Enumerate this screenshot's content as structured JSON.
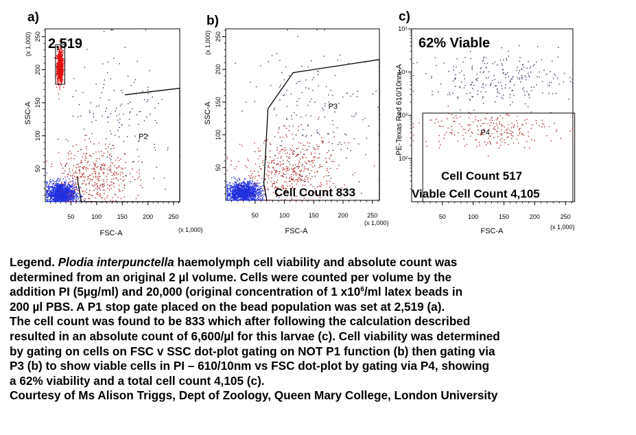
{
  "chart_data": [
    {
      "type": "scatter",
      "panel_label": "a)",
      "count_text": "2,519",
      "xlabel": "FSC-A",
      "ylabel": "SSC-A",
      "x_scale_note": "(x 1,000)",
      "y_scale_note": "(x 1,000)",
      "xlim": [
        0,
        262
      ],
      "ylim": [
        0,
        262
      ],
      "x_ticks": [
        "50",
        "100",
        "150",
        "200",
        "250"
      ],
      "y_ticks": [
        "50",
        "100",
        "150",
        "200",
        "250"
      ],
      "gates": [
        {
          "name": "P1",
          "shape": "rectangle",
          "x_range": [
            20,
            38
          ],
          "y_range": [
            178,
            238
          ],
          "label_shown": false
        },
        {
          "name": "P2",
          "shape": "polygon",
          "points": [
            [
              62,
              38
            ],
            [
              70,
              0
            ],
            [
              88,
              -12
            ],
            [
              270,
              -12
            ],
            [
              270,
              172
            ],
            [
              155,
              162
            ]
          ],
          "label": "P2",
          "label_pos": [
            182,
            95
          ]
        }
      ],
      "populations": [
        {
          "name": "beads",
          "color": "#e01010",
          "center": [
            28,
            205
          ],
          "spread": [
            3,
            12
          ],
          "approx_events": 2519
        },
        {
          "name": "cells",
          "color": "#2030e0",
          "center": [
            30,
            12
          ],
          "spread": [
            14,
            9
          ]
        },
        {
          "name": "gated cells",
          "color": "#b02020",
          "center": [
            95,
            40
          ],
          "spread": [
            35,
            25
          ]
        },
        {
          "name": "debris",
          "color": "#303060",
          "center": [
            150,
            110
          ],
          "spread": [
            55,
            60
          ]
        }
      ]
    },
    {
      "type": "scatter",
      "panel_label": "b)",
      "count_text": "Cell Count 833",
      "xlabel": "FSC-A",
      "ylabel": "SSC-A",
      "x_scale_note": "(x 1,000)",
      "y_scale_note": "(x 1,000)",
      "xlim": [
        0,
        262
      ],
      "ylim": [
        0,
        262
      ],
      "x_ticks": [
        "50",
        "100",
        "150",
        "200",
        "250"
      ],
      "y_ticks": [
        "50",
        "100",
        "150",
        "200",
        "250"
      ],
      "gates": [
        {
          "name": "P3",
          "shape": "polygon",
          "points": [
            [
              70,
              0
            ],
            [
              65,
              25
            ],
            [
              72,
              140
            ],
            [
              115,
              195
            ],
            [
              265,
              215
            ],
            [
              265,
              0
            ]
          ],
          "label": "P3",
          "label_pos": [
            175,
            140
          ]
        }
      ],
      "populations": [
        {
          "name": "cells",
          "color": "#2030e0",
          "center": [
            30,
            12
          ],
          "spread": [
            14,
            8
          ]
        },
        {
          "name": "gated cells",
          "color": "#b02020",
          "center": [
            110,
            45
          ],
          "spread": [
            40,
            25
          ]
        },
        {
          "name": "debris",
          "color": "#303060",
          "center": [
            150,
            120
          ],
          "spread": [
            60,
            60
          ]
        }
      ]
    },
    {
      "type": "scatter",
      "panel_label": "c)",
      "title": "62% Viable",
      "count_text": "Cell Count 517",
      "count_text_2": "Viable Cell Count 4,105",
      "xlabel": "FSC-A",
      "ylabel": "PE-Texas Red 610/10nm-A",
      "x_scale_note": "(x 1,000)",
      "xlim": [
        0,
        262
      ],
      "ylim": [
        1,
        5
      ],
      "y_log": true,
      "x_ticks": [
        "50",
        "100",
        "150",
        "200",
        "250"
      ],
      "y_ticks": [
        "10²",
        "10³",
        "10⁴",
        "10⁵"
      ],
      "gates": [
        {
          "name": "P4",
          "shape": "rectangle",
          "x_range": [
            18,
            265
          ],
          "y_range": [
            1,
            3.05
          ],
          "label": "P4",
          "label_pos": [
            112,
            2.55
          ]
        }
      ],
      "populations": [
        {
          "name": "non-viable",
          "color": "#303060",
          "center": [
            150,
            3.85
          ],
          "spread": [
            60,
            0.3
          ]
        },
        {
          "name": "viable",
          "color": "#b02020",
          "center": [
            120,
            2.7
          ],
          "spread": [
            55,
            0.22
          ]
        }
      ]
    }
  ],
  "legend": {
    "lead": "Legend. ",
    "species": "Plodia interpunctella",
    "l1_rest": " haemolymph cell viability and absolute count was",
    "l2": "determined from an original 2 µl volume.  Cells were counted per volume by the",
    "l3": "addition PI (5µg/ml) and 20,000 (original concentration of 1 x10",
    "l3_sup": "6",
    "l3_end": "/ml latex beads in",
    "l4": "200 µl PBS. A P1 stop gate placed on the bead population was set at 2,519 (a).",
    "l5": "The cell count was found to be 833 which after following the calculation described",
    "l6": " resulted in an absolute count of 6,600/µl for this larvae (c). Cell viability was determined",
    "l7": "by gating on cells on FSC v SSC dot-plot gating on NOT P1 function (b) then gating via",
    "l8": "P3 (b) to show viable cells in PI – 610/10nm vs FSC dot-plot by gating via P4, showing",
    "l9": " a 62% viability and a total cell count 4,105 (c).",
    "l10": "Courtesy of Ms Alison Triggs, Dept of Zoology, Queen Mary College, London University"
  }
}
